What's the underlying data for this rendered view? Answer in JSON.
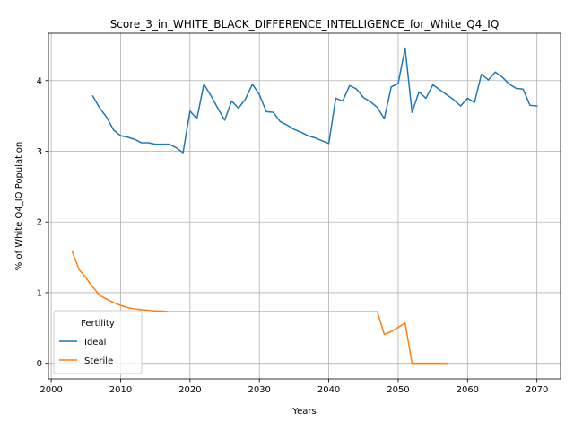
{
  "chart_data": {
    "type": "line",
    "title": "Score_3_in_WHITE_BLACK_DIFFERENCE_INTELLIGENCE_for_White_Q4_IQ",
    "xlabel": "Years",
    "ylabel": "% of White Q4_IQ Population",
    "xlim": [
      1999.6,
      2073.4
    ],
    "ylim": [
      -0.22,
      4.67
    ],
    "xticks": [
      2000,
      2010,
      2020,
      2030,
      2040,
      2050,
      2060,
      2070
    ],
    "yticks": [
      0,
      1,
      2,
      3,
      4
    ],
    "grid": true,
    "legend": {
      "title": "Fertility",
      "placement": "lower-left"
    },
    "series": [
      {
        "name": "Ideal",
        "color": "#1f77b4",
        "x": [
          2006,
          2007,
          2008,
          2009,
          2010,
          2011,
          2012,
          2013,
          2014,
          2015,
          2016,
          2017,
          2018,
          2019,
          2020,
          2021,
          2022,
          2023,
          2024,
          2025,
          2026,
          2027,
          2028,
          2029,
          2030,
          2031,
          2032,
          2033,
          2034,
          2035,
          2036,
          2037,
          2038,
          2039,
          2040,
          2041,
          2042,
          2043,
          2044,
          2045,
          2046,
          2047,
          2048,
          2049,
          2050,
          2051,
          2052,
          2053,
          2054,
          2055,
          2056,
          2057,
          2058,
          2059,
          2060,
          2061,
          2062,
          2063,
          2064,
          2065,
          2066,
          2067,
          2068,
          2069,
          2070
        ],
        "values": [
          3.78,
          3.61,
          3.48,
          3.3,
          3.22,
          3.2,
          3.17,
          3.12,
          3.12,
          3.1,
          3.1,
          3.1,
          3.05,
          2.98,
          3.57,
          3.46,
          3.95,
          3.79,
          3.61,
          3.44,
          3.71,
          3.61,
          3.74,
          3.95,
          3.8,
          3.56,
          3.55,
          3.42,
          3.37,
          3.31,
          3.27,
          3.22,
          3.19,
          3.15,
          3.11,
          3.75,
          3.71,
          3.93,
          3.88,
          3.76,
          3.7,
          3.62,
          3.46,
          3.91,
          3.96,
          4.46,
          3.55,
          3.84,
          3.75,
          3.94,
          3.87,
          3.8,
          3.73,
          3.64,
          3.75,
          3.69,
          4.09,
          4.01,
          4.12,
          4.05,
          3.95,
          3.89,
          3.88,
          3.65,
          3.64
        ]
      },
      {
        "name": "Sterile",
        "color": "#ff7f0e",
        "x": [
          2003,
          2004,
          2005,
          2006,
          2007,
          2008,
          2009,
          2010,
          2011,
          2012,
          2013,
          2014,
          2015,
          2016,
          2017,
          2018,
          2019,
          2020,
          2021,
          2022,
          2023,
          2024,
          2025,
          2026,
          2027,
          2028,
          2029,
          2030,
          2031,
          2032,
          2033,
          2034,
          2035,
          2036,
          2037,
          2038,
          2039,
          2040,
          2041,
          2042,
          2043,
          2044,
          2045,
          2046,
          2047,
          2048,
          2049,
          2050,
          2051,
          2052,
          2053,
          2054,
          2055,
          2056,
          2057
        ],
        "values": [
          1.59,
          1.33,
          1.21,
          1.08,
          0.96,
          0.91,
          0.86,
          0.82,
          0.79,
          0.77,
          0.76,
          0.75,
          0.74,
          0.74,
          0.73,
          0.73,
          0.73,
          0.73,
          0.73,
          0.73,
          0.73,
          0.73,
          0.73,
          0.73,
          0.73,
          0.73,
          0.73,
          0.73,
          0.73,
          0.73,
          0.73,
          0.73,
          0.73,
          0.73,
          0.73,
          0.73,
          0.73,
          0.73,
          0.73,
          0.73,
          0.73,
          0.73,
          0.73,
          0.73,
          0.73,
          0.41,
          0.45,
          0.51,
          0.57,
          0.0,
          0.0,
          0.0,
          0.0,
          0.0,
          0.0
        ]
      }
    ]
  }
}
